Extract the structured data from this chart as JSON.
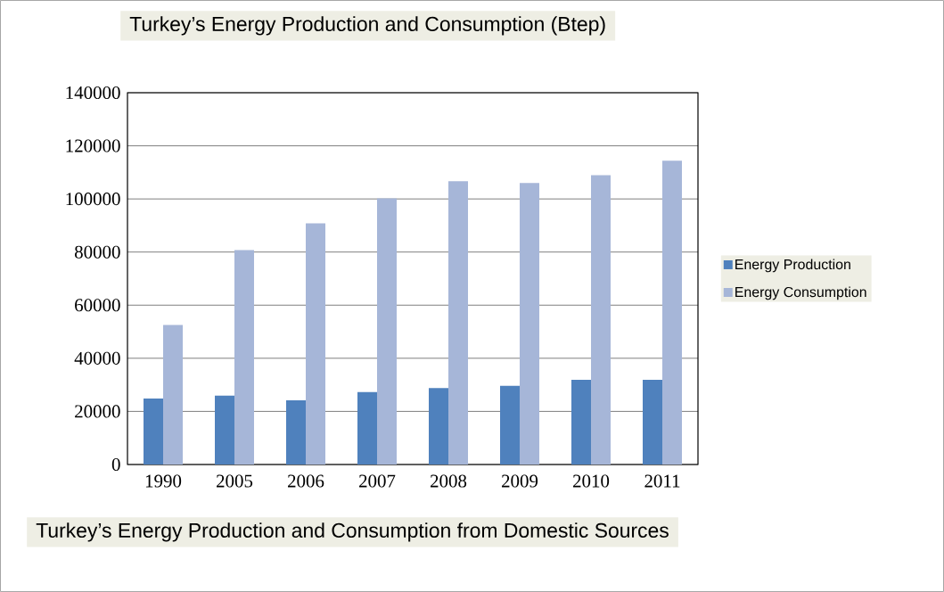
{
  "chart_data": {
    "type": "bar",
    "title": "Turkey’s Energy Production and Consumption (Btep)",
    "annotations": [
      "Turkey’s Energy Production and Consumption from Domestic Sources"
    ],
    "categories": [
      "1990",
      "2005",
      "2006",
      "2007",
      "2008",
      "2009",
      "2010",
      "2011"
    ],
    "series": [
      {
        "name": "Energy Production",
        "color": "#4f81bd",
        "values": [
          24800,
          25900,
          24200,
          27300,
          28800,
          29600,
          31900,
          31900
        ]
      },
      {
        "name": "Energy Consumption",
        "color": "#a6b6d8",
        "values": [
          52500,
          80700,
          90800,
          100200,
          106700,
          106000,
          108900,
          114400
        ]
      }
    ],
    "ylim": [
      0,
      140000
    ],
    "yticks": [
      0,
      20000,
      40000,
      60000,
      80000,
      100000,
      120000,
      140000
    ],
    "grid": "y",
    "legend": "right"
  }
}
